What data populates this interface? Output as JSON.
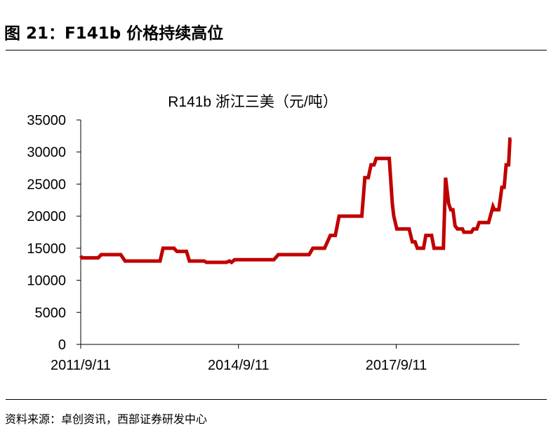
{
  "figure_title": "图 21：F141b 价格持续高位",
  "source_note": "资料来源：卓创资讯，西部证券研发中心",
  "colors": {
    "series": "#c00000",
    "axis": "#000000"
  },
  "chart_data": {
    "type": "line",
    "title": "R141b 浙江三美（元/吨）",
    "xlabel": "",
    "ylabel": "",
    "xlim": [
      "2011-09-11",
      "2020-01-15"
    ],
    "ylim": [
      0,
      35000
    ],
    "y_ticks": [
      0,
      5000,
      10000,
      15000,
      20000,
      25000,
      30000,
      35000
    ],
    "x_tick_labels": [
      "2011/9/11",
      "2014/9/11",
      "2017/9/11"
    ],
    "x_tick_dates": [
      "2011-09-11",
      "2014-09-11",
      "2017-09-11"
    ],
    "grid": false,
    "legend": "none",
    "series": [
      {
        "points": [
          [
            "2011-09-11",
            13800
          ],
          [
            "2011-09-20",
            13500
          ],
          [
            "2012-01-10",
            13500
          ],
          [
            "2012-02-01",
            14000
          ],
          [
            "2012-06-15",
            14000
          ],
          [
            "2012-07-15",
            13000
          ],
          [
            "2013-03-15",
            13000
          ],
          [
            "2013-04-05",
            15000
          ],
          [
            "2013-06-20",
            15000
          ],
          [
            "2013-07-10",
            14500
          ],
          [
            "2013-09-15",
            14500
          ],
          [
            "2013-10-05",
            13000
          ],
          [
            "2014-01-15",
            13000
          ],
          [
            "2014-02-01",
            12800
          ],
          [
            "2014-06-20",
            12800
          ],
          [
            "2014-07-10",
            13000
          ],
          [
            "2014-07-25",
            12800
          ],
          [
            "2014-08-15",
            13200
          ],
          [
            "2015-05-15",
            13200
          ],
          [
            "2015-06-15",
            14000
          ],
          [
            "2016-01-15",
            14000
          ],
          [
            "2016-02-10",
            15000
          ],
          [
            "2016-05-01",
            15000
          ],
          [
            "2016-06-10",
            17000
          ],
          [
            "2016-07-15",
            17000
          ],
          [
            "2016-08-10",
            20000
          ],
          [
            "2017-01-15",
            20000
          ],
          [
            "2017-02-05",
            26000
          ],
          [
            "2017-03-01",
            26000
          ],
          [
            "2017-03-20",
            28000
          ],
          [
            "2017-04-10",
            28000
          ],
          [
            "2017-04-25",
            29000
          ],
          [
            "2017-07-25",
            29000
          ],
          [
            "2017-08-15",
            22000
          ],
          [
            "2017-08-25",
            20000
          ],
          [
            "2017-09-15",
            18000
          ],
          [
            "2017-12-10",
            18000
          ],
          [
            "2018-01-01",
            16000
          ],
          [
            "2018-01-20",
            16000
          ],
          [
            "2018-02-05",
            15000
          ],
          [
            "2018-03-20",
            15000
          ],
          [
            "2018-04-05",
            17000
          ],
          [
            "2018-05-15",
            17000
          ],
          [
            "2018-06-01",
            15000
          ],
          [
            "2018-08-05",
            15000
          ],
          [
            "2018-08-20",
            26000
          ],
          [
            "2018-09-10",
            22000
          ],
          [
            "2018-09-25",
            21000
          ],
          [
            "2018-10-10",
            21000
          ],
          [
            "2018-10-25",
            18500
          ],
          [
            "2018-11-10",
            18000
          ],
          [
            "2018-12-15",
            18000
          ],
          [
            "2018-12-25",
            17500
          ],
          [
            "2019-02-15",
            17500
          ],
          [
            "2019-03-01",
            18000
          ],
          [
            "2019-03-25",
            18000
          ],
          [
            "2019-04-10",
            19000
          ],
          [
            "2019-06-15",
            19000
          ],
          [
            "2019-07-15",
            21500
          ],
          [
            "2019-07-25",
            21000
          ],
          [
            "2019-08-25",
            21000
          ],
          [
            "2019-09-15",
            24500
          ],
          [
            "2019-10-01",
            24500
          ],
          [
            "2019-10-15",
            28000
          ],
          [
            "2019-11-01",
            28000
          ],
          [
            "2019-11-10",
            32000
          ],
          [
            "2019-11-20",
            32000
          ]
        ]
      }
    ]
  }
}
